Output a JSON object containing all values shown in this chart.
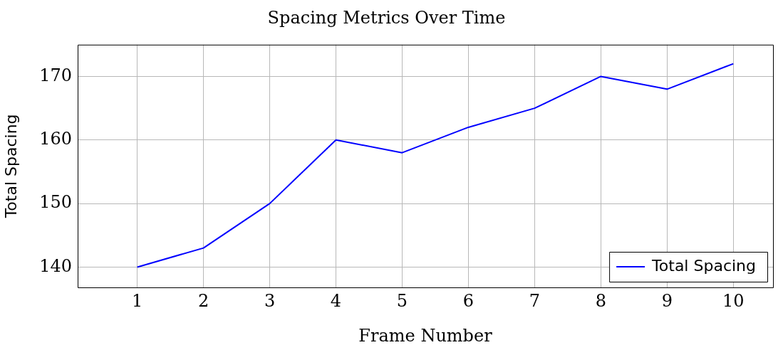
{
  "chart_data": {
    "type": "line",
    "title": "Spacing Metrics Over Time",
    "xlabel": "Frame Number",
    "ylabel": "Total Spacing",
    "x": [
      1,
      2,
      3,
      4,
      5,
      6,
      7,
      8,
      9,
      10
    ],
    "series": [
      {
        "name": "Total Spacing",
        "color": "#0000ff",
        "values": [
          140,
          143,
          150,
          160,
          158,
          162,
          165,
          170,
          168,
          172
        ]
      }
    ],
    "xlim": [
      0.1,
      10.6
    ],
    "xticks": [
      1,
      2,
      3,
      4,
      5,
      6,
      7,
      8,
      9,
      10
    ],
    "ylim": [
      136.8,
      175
    ],
    "yticks": [
      140,
      150,
      160,
      170
    ],
    "grid": true,
    "legend": "bottom right",
    "marker": "none",
    "line_style": "solid"
  }
}
